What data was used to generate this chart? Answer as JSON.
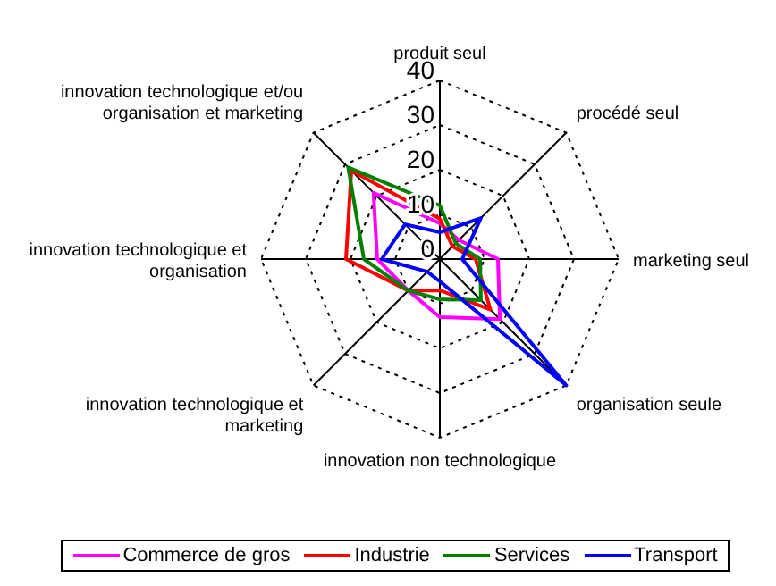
{
  "chart_data": {
    "type": "radar",
    "categories": [
      "produit seul",
      "procédé seul",
      "marketing seul",
      "organisation seule",
      "innovation non technologique",
      "innovation technologique et marketing",
      "innovation technologique et organisation",
      "innovation technologique et/ou organisation et marketing"
    ],
    "series": [
      {
        "name": "Commerce de gros",
        "color": "#ff00ff",
        "values": [
          8,
          6,
          13,
          19,
          13,
          10,
          14,
          21
        ]
      },
      {
        "name": "Industrie",
        "color": "#ff0000",
        "values": [
          9,
          4,
          8,
          16,
          7,
          10,
          21,
          28
        ]
      },
      {
        "name": "Services",
        "color": "#008000",
        "values": [
          12,
          5,
          9,
          13,
          9,
          10,
          17,
          29
        ]
      },
      {
        "name": "Transport",
        "color": "#0000ff",
        "values": [
          6,
          13,
          5,
          40,
          5,
          4,
          13,
          11
        ]
      }
    ],
    "ylim": [
      0,
      40
    ],
    "yticks": [
      0,
      10,
      20,
      30,
      40
    ],
    "grid": true,
    "legend": "bottom",
    "marker": "none"
  }
}
